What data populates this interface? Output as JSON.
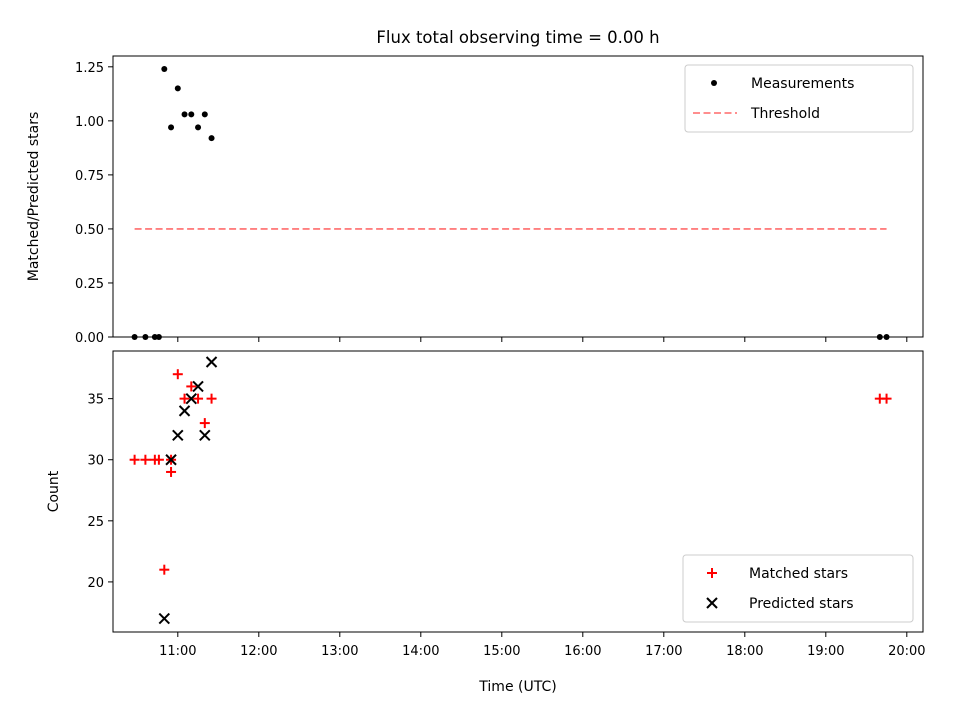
{
  "chart_data": [
    {
      "type": "scatter",
      "title": "Flux total observing time = 0.00 h",
      "xlabel": "",
      "ylabel": "Matched/Predicted stars",
      "xlim_hours": [
        10.2,
        20.2
      ],
      "ylim": [
        0,
        1.3
      ],
      "x_ticks": [
        11,
        12,
        13,
        14,
        15,
        16,
        17,
        18,
        19,
        20
      ],
      "y_ticks": [
        0.0,
        0.25,
        0.5,
        0.75,
        1.0,
        1.25
      ],
      "y_tick_labels": [
        "0.00",
        "0.25",
        "0.50",
        "0.75",
        "1.00",
        "1.25"
      ],
      "legend_position": "top-right",
      "series": [
        {
          "name": "Measurements",
          "kind": "scatter",
          "marker": "dot",
          "color": "#000000",
          "x": [
            "10:28",
            "10:36",
            "10:43",
            "10:46",
            "10:50",
            "10:55",
            "11:00",
            "11:05",
            "11:10",
            "11:15",
            "11:20",
            "11:25",
            "19:40",
            "19:45"
          ],
          "y": [
            0.0,
            0.0,
            0.0,
            0.0,
            1.24,
            0.97,
            1.15,
            1.03,
            1.03,
            0.97,
            1.03,
            0.92,
            0.0,
            0.0
          ]
        },
        {
          "name": "Threshold",
          "kind": "line",
          "style": "dashed",
          "color": "#ff7f7f",
          "x": [
            "10:28",
            "19:45"
          ],
          "y": [
            0.5,
            0.5
          ]
        }
      ]
    },
    {
      "type": "scatter",
      "title": "",
      "xlabel": "Time (UTC)",
      "ylabel": "Count",
      "xlim_hours": [
        10.2,
        20.2
      ],
      "ylim": [
        15.9,
        38.9
      ],
      "x_ticks": [
        11,
        12,
        13,
        14,
        15,
        16,
        17,
        18,
        19,
        20
      ],
      "x_tick_labels": [
        "11:00",
        "12:00",
        "13:00",
        "14:00",
        "15:00",
        "16:00",
        "17:00",
        "18:00",
        "19:00",
        "20:00"
      ],
      "y_ticks": [
        20,
        25,
        30,
        35
      ],
      "y_tick_labels": [
        "20",
        "25",
        "30",
        "35"
      ],
      "legend_position": "bottom-right",
      "series": [
        {
          "name": "Matched stars",
          "kind": "scatter",
          "marker": "plus",
          "color": "#ff0000",
          "x": [
            "10:28",
            "10:36",
            "10:43",
            "10:46",
            "10:50",
            "10:55",
            "10:55",
            "11:00",
            "11:05",
            "11:10",
            "11:15",
            "11:20",
            "11:25",
            "19:40",
            "19:45"
          ],
          "y": [
            30,
            30,
            30,
            30,
            21,
            30,
            29,
            37,
            35,
            36,
            35,
            33,
            35,
            35,
            35
          ]
        },
        {
          "name": "Predicted stars",
          "kind": "scatter",
          "marker": "x",
          "color": "#000000",
          "x": [
            "10:50",
            "10:55",
            "11:00",
            "11:05",
            "11:10",
            "11:15",
            "11:20",
            "11:25"
          ],
          "y": [
            17,
            30,
            32,
            34,
            35,
            36,
            32,
            38
          ]
        }
      ]
    }
  ]
}
